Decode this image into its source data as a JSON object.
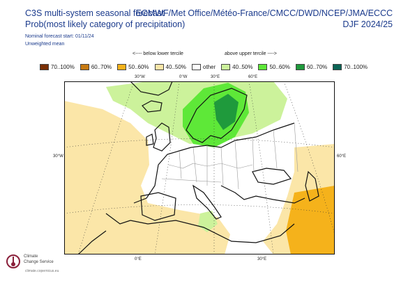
{
  "header": {
    "title": "C3S multi-system seasonal forecast",
    "subtitle": "Prob(most likely category of precipitation)",
    "nominal": "Nominal forecast start: 01/11/24",
    "weighting": "Unweighted mean",
    "centres": "ECMWF/Met Office/Météo-France/CMCC/DWD/NCEP/JMA/ECCC",
    "season": "DJF 2024/25"
  },
  "tercile": {
    "below_label": "<---- below lower tercile",
    "above_label": "above upper tercile ---->"
  },
  "legend": [
    {
      "label": "70..100%",
      "color": "#7a2f05"
    },
    {
      "label": "60..70%",
      "color": "#c77a12"
    },
    {
      "label": "50..60%",
      "color": "#f5b21b"
    },
    {
      "label": "40..50%",
      "color": "#fbe6a8"
    },
    {
      "label": "other",
      "color": "#ffffff"
    },
    {
      "label": "40..50%",
      "color": "#ccf29b"
    },
    {
      "label": "50..60%",
      "color": "#5ee838"
    },
    {
      "label": "60..70%",
      "color": "#1f9a3c"
    },
    {
      "label": "70..100%",
      "color": "#0b6455"
    }
  ],
  "axes": {
    "top": [
      "30°W",
      "0°W",
      "30°E",
      "60°E"
    ],
    "left": "30°W",
    "right": "60°E",
    "bottom": [
      "0°E",
      "30°E"
    ]
  },
  "logo": {
    "line1": "Climate",
    "line2": "Change Service",
    "url": "climate.copernicus.eu"
  }
}
